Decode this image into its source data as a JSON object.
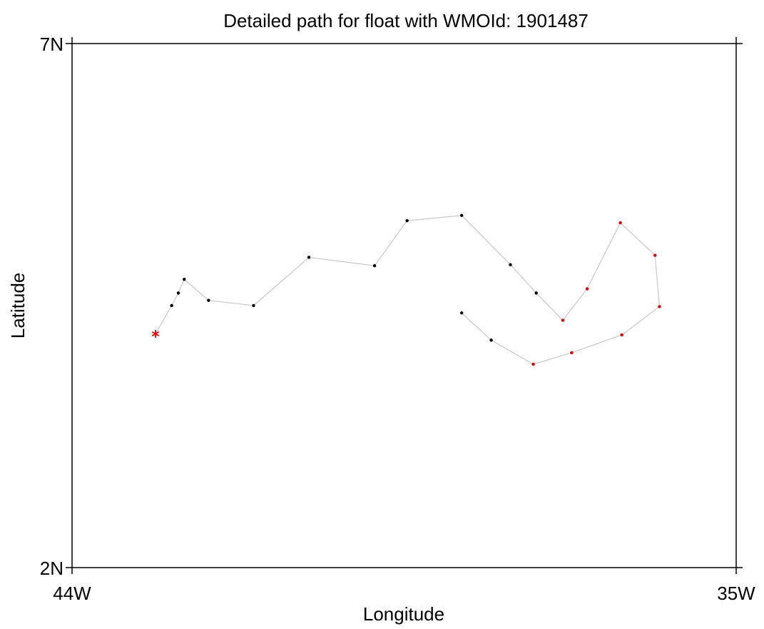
{
  "chart_data": {
    "type": "scatter",
    "title": "Detailed path for float with WMOId: 1901487",
    "xlabel": "Longitude",
    "ylabel": "Latitude",
    "xlim": [
      -44,
      -35
    ],
    "ylim": [
      2,
      7
    ],
    "x_ticks": [
      {
        "value": -44,
        "label": "44W"
      },
      {
        "value": -35,
        "label": "35W"
      }
    ],
    "y_ticks": [
      {
        "value": 2,
        "label": "2N"
      },
      {
        "value": 7,
        "label": "7N"
      }
    ],
    "grid": false,
    "path_color": "#c8c8c8",
    "start_marker": {
      "lon": -42.87,
      "lat": 4.23,
      "symbol": "asterisk",
      "color": "#e00000"
    },
    "series": [
      {
        "color": "#000000",
        "points": [
          {
            "lon": -42.65,
            "lat": 4.5
          },
          {
            "lon": -42.56,
            "lat": 4.62
          },
          {
            "lon": -42.48,
            "lat": 4.75
          },
          {
            "lon": -42.15,
            "lat": 4.55
          },
          {
            "lon": -41.54,
            "lat": 4.5
          },
          {
            "lon": -40.79,
            "lat": 4.96
          },
          {
            "lon": -39.9,
            "lat": 4.88
          },
          {
            "lon": -39.46,
            "lat": 5.31
          },
          {
            "lon": -38.72,
            "lat": 5.36
          },
          {
            "lon": -38.06,
            "lat": 4.89
          },
          {
            "lon": -37.71,
            "lat": 4.62
          }
        ]
      },
      {
        "color": "#e00000",
        "points": [
          {
            "lon": -37.35,
            "lat": 4.36
          },
          {
            "lon": -37.02,
            "lat": 4.66
          },
          {
            "lon": -36.57,
            "lat": 5.29
          },
          {
            "lon": -36.1,
            "lat": 4.98
          },
          {
            "lon": -36.04,
            "lat": 4.49
          },
          {
            "lon": -36.55,
            "lat": 4.22
          },
          {
            "lon": -37.23,
            "lat": 4.05
          },
          {
            "lon": -37.75,
            "lat": 3.94
          }
        ]
      },
      {
        "color": "#000000",
        "points": [
          {
            "lon": -38.32,
            "lat": 4.17
          },
          {
            "lon": -38.72,
            "lat": 4.43
          }
        ]
      }
    ],
    "path_order": [
      [
        -42.87,
        4.23
      ],
      [
        -42.65,
        4.5
      ],
      [
        -42.56,
        4.62
      ],
      [
        -42.48,
        4.75
      ],
      [
        -42.15,
        4.55
      ],
      [
        -41.54,
        4.5
      ],
      [
        -40.79,
        4.96
      ],
      [
        -39.9,
        4.88
      ],
      [
        -39.46,
        5.31
      ],
      [
        -38.72,
        5.36
      ],
      [
        -38.06,
        4.89
      ],
      [
        -37.71,
        4.62
      ],
      [
        -37.35,
        4.36
      ],
      [
        -37.02,
        4.66
      ],
      [
        -36.57,
        5.29
      ],
      [
        -36.1,
        4.98
      ],
      [
        -36.04,
        4.49
      ],
      [
        -36.55,
        4.22
      ],
      [
        -37.23,
        4.05
      ],
      [
        -37.75,
        3.94
      ],
      [
        -38.32,
        4.17
      ],
      [
        -38.72,
        4.43
      ]
    ]
  }
}
